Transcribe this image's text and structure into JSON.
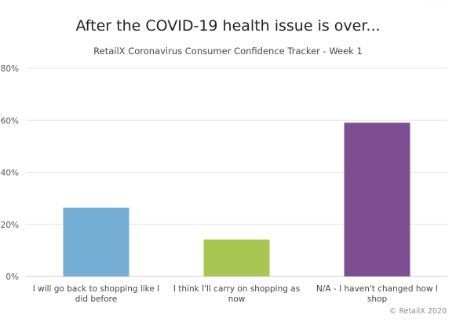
{
  "header": {
    "title": "After the COVID-19 health issue is over...",
    "subtitle": "RetailX Coronavirus Consumer Confidence Tracker - Week 1"
  },
  "credits": "© RetailX 2020",
  "chart_data": {
    "type": "bar",
    "title": "After the COVID-19 health issue is over...",
    "subtitle": "RetailX Coronavirus Consumer Confidence Tracker - Week 1",
    "categories": [
      [
        "I will go back to shopping like I",
        "did before"
      ],
      [
        "I think I'll carry on shopping as",
        "now"
      ],
      [
        "N/A - I haven't changed how I",
        "shop"
      ]
    ],
    "values": [
      26.4,
      14.2,
      59.1
    ],
    "colors": [
      "#74aed5",
      "#a8c651",
      "#7d4f92"
    ],
    "ylim": [
      0,
      80
    ],
    "yticks": [
      0,
      20,
      40,
      60,
      80
    ],
    "ytick_labels": [
      "0%",
      "20%",
      "40%",
      "60%",
      "80%"
    ],
    "grid": true,
    "legend": "none"
  }
}
